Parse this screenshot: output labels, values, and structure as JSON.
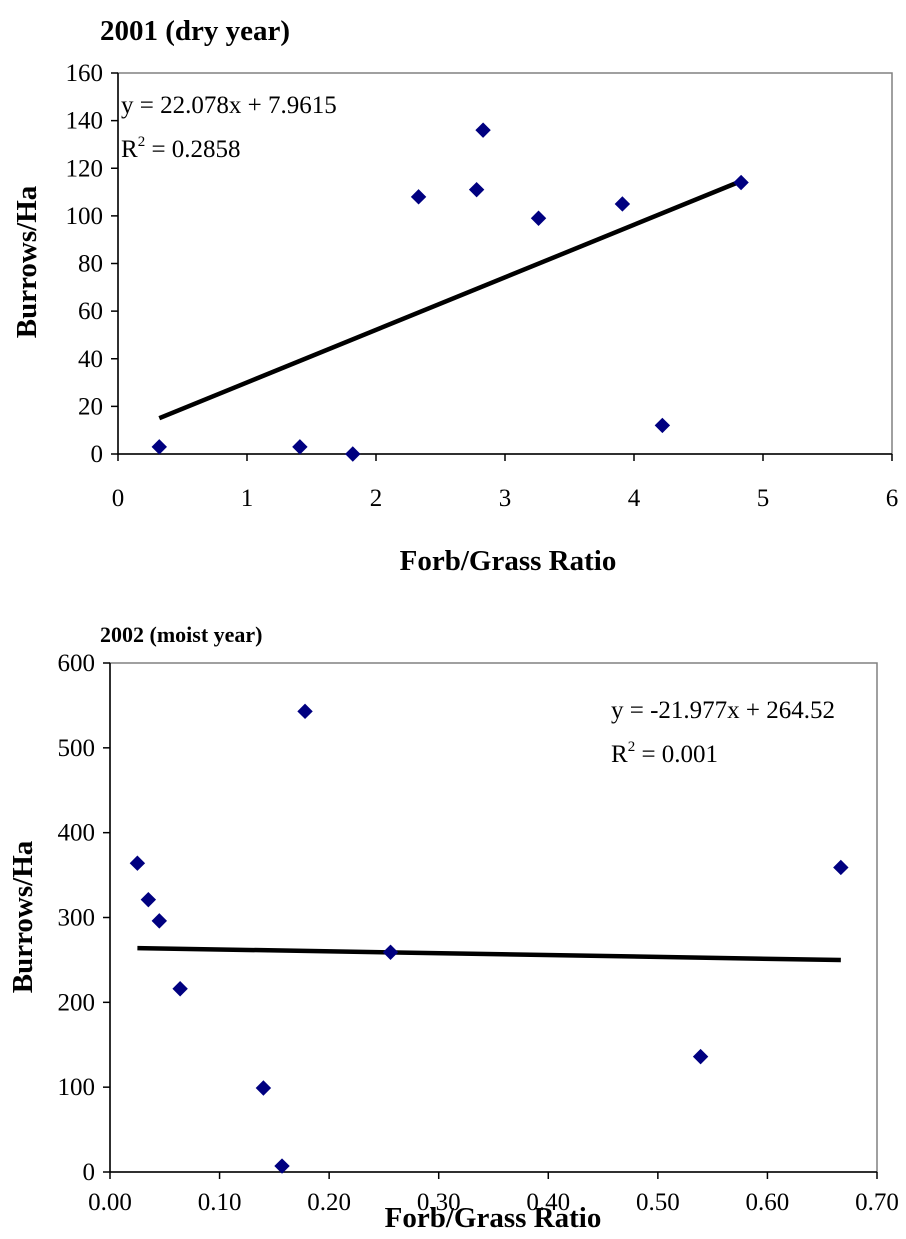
{
  "chart_data": [
    {
      "type": "scatter",
      "title": "2001 (dry year)",
      "xlabel": "Forb/Grass Ratio",
      "ylabel": "Burrows/Ha",
      "xlim": [
        0,
        6
      ],
      "ylim": [
        0,
        160
      ],
      "xticks": [
        "0",
        "1",
        "2",
        "3",
        "4",
        "5",
        "6"
      ],
      "yticks": [
        "0",
        "20",
        "40",
        "60",
        "80",
        "100",
        "120",
        "140",
        "160"
      ],
      "xtick_values": [
        0,
        1,
        2,
        3,
        4,
        5,
        6
      ],
      "ytick_values": [
        0,
        20,
        40,
        60,
        80,
        100,
        120,
        140,
        160
      ],
      "points": [
        {
          "x": 0.32,
          "y": 3
        },
        {
          "x": 1.41,
          "y": 3
        },
        {
          "x": 1.82,
          "y": 0
        },
        {
          "x": 2.33,
          "y": 108
        },
        {
          "x": 2.78,
          "y": 111
        },
        {
          "x": 2.83,
          "y": 136
        },
        {
          "x": 3.26,
          "y": 99
        },
        {
          "x": 3.91,
          "y": 105
        },
        {
          "x": 4.22,
          "y": 12
        },
        {
          "x": 4.83,
          "y": 114
        }
      ],
      "trendline": {
        "slope": 22.078,
        "intercept": 7.9615,
        "x_range": [
          0.32,
          4.83
        ]
      },
      "equation": "y = 22.078x + 7.9615",
      "r2_prefix": "R",
      "r2_exp": "2",
      "r2_value": " = 0.2858",
      "marker_color": "#000080",
      "line_color": "#000000",
      "grid": false
    },
    {
      "type": "scatter",
      "title": "2002 (moist year)",
      "xlabel": "Forb/Grass Ratio",
      "ylabel": "Burrows/Ha",
      "xlim": [
        0,
        0.7
      ],
      "ylim": [
        0,
        600
      ],
      "xticks": [
        "0.00",
        "0.10",
        "0.20",
        "0.30",
        "0.40",
        "0.50",
        "0.60",
        "0.70"
      ],
      "yticks": [
        "0",
        "100",
        "200",
        "300",
        "400",
        "500",
        "600"
      ],
      "xtick_values": [
        0,
        0.1,
        0.2,
        0.3,
        0.4,
        0.5,
        0.6,
        0.7
      ],
      "ytick_values": [
        0,
        100,
        200,
        300,
        400,
        500,
        600
      ],
      "points": [
        {
          "x": 0.025,
          "y": 364
        },
        {
          "x": 0.035,
          "y": 321
        },
        {
          "x": 0.045,
          "y": 296
        },
        {
          "x": 0.064,
          "y": 216
        },
        {
          "x": 0.14,
          "y": 99
        },
        {
          "x": 0.157,
          "y": 7
        },
        {
          "x": 0.178,
          "y": 543
        },
        {
          "x": 0.256,
          "y": 259
        },
        {
          "x": 0.539,
          "y": 136
        },
        {
          "x": 0.667,
          "y": 359
        }
      ],
      "trendline": {
        "slope": -21.977,
        "intercept": 264.52,
        "x_range": [
          0.025,
          0.667
        ]
      },
      "equation": "y = -21.977x + 264.52",
      "r2_prefix": "R",
      "r2_exp": "2",
      "r2_value": " = 0.001",
      "marker_color": "#000080",
      "line_color": "#000000",
      "grid": false
    }
  ]
}
